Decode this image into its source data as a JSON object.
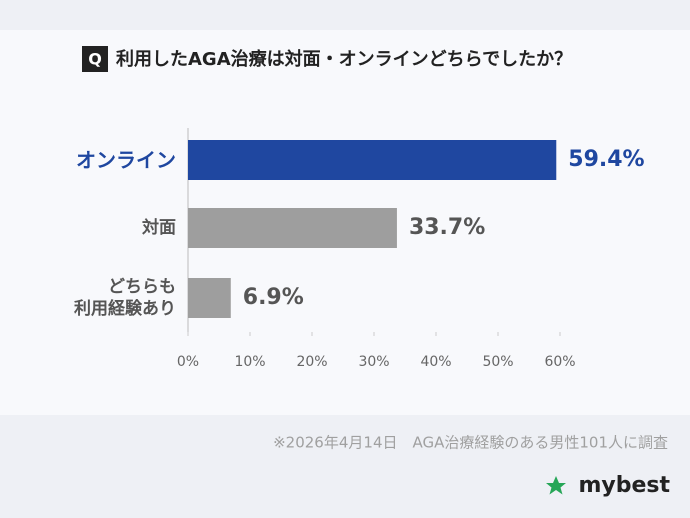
{
  "chart_data": {
    "type": "hbar",
    "badge": "Q",
    "title": "利用したAGA治療は対面・オンラインどちらでしたか？",
    "categories": [
      "オンライン",
      "対面",
      "どちらも\n利用経験あり"
    ],
    "values": [
      59.4,
      33.7,
      6.9
    ],
    "value_labels": [
      "59.4%",
      "33.7%",
      "6.9%"
    ],
    "colors": [
      "#1f47a0",
      "#9e9e9e",
      "#9e9e9e"
    ],
    "label_colors": [
      "#1f47a0",
      "#555555",
      "#555555"
    ],
    "xlim": [
      0,
      60
    ],
    "xticks": [
      {
        "value": 0,
        "label": "0%"
      },
      {
        "value": 10,
        "label": "10%"
      },
      {
        "value": 20,
        "label": "20%"
      },
      {
        "value": 30,
        "label": "30%"
      },
      {
        "value": 40,
        "label": "40%"
      },
      {
        "value": 50,
        "label": "50%"
      },
      {
        "value": 60,
        "label": "60%"
      }
    ],
    "footnote": "※2026年4月14日　AGA治療経験のある男性101人に調査",
    "brand": "mybest"
  }
}
